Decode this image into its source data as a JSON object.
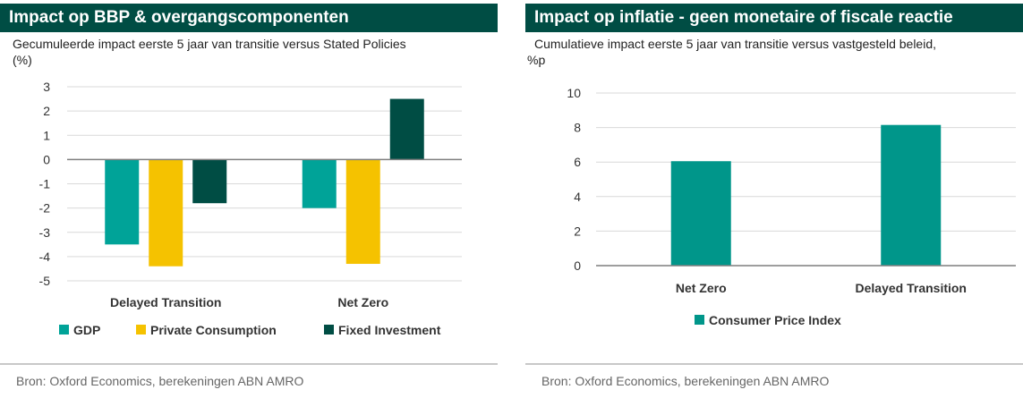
{
  "left_panel": {
    "header": "Impact op BBP & overgangscomponenten",
    "subtitle_line1": "Gecumuleerde impact eerste 5 jaar van transitie versus Stated Policies",
    "subtitle_line2": "(%)",
    "source": "Bron: Oxford Economics, berekeningen ABN AMRO"
  },
  "right_panel": {
    "header": "Impact op inflatie - geen monetaire of fiscale reactie",
    "subtitle_line1": "Cumulatieve impact eerste 5 jaar van transitie versus vastgesteld beleid,",
    "subtitle_line2": "%p",
    "source": "Bron: Oxford Economics, berekeningen ABN AMRO"
  },
  "chart_data": [
    {
      "type": "bar",
      "categories": [
        "Delayed Transition",
        "Net Zero"
      ],
      "series": [
        {
          "name": "GDP",
          "values": [
            -3.5,
            -2.0
          ],
          "color": "#00a398"
        },
        {
          "name": "Private Consumption",
          "values": [
            -4.4,
            -4.3
          ],
          "color": "#f5c200"
        },
        {
          "name": "Fixed Investment",
          "values": [
            -1.8,
            2.5
          ],
          "color": "#004d44"
        }
      ],
      "ylim": [
        -5,
        3
      ],
      "yticks": [
        3,
        2,
        1,
        0,
        -1,
        -2,
        -3,
        -4,
        -5
      ],
      "grid": true,
      "legend": "bottom"
    },
    {
      "type": "bar",
      "categories": [
        "Net Zero",
        "Delayed Transition"
      ],
      "series": [
        {
          "name": "Consumer Price Index",
          "values": [
            6.05,
            8.15
          ],
          "color": "#00968a"
        }
      ],
      "ylim": [
        0,
        10
      ],
      "yticks": [
        10,
        8,
        6,
        4,
        2,
        0
      ],
      "grid": true,
      "legend": "bottom"
    }
  ]
}
